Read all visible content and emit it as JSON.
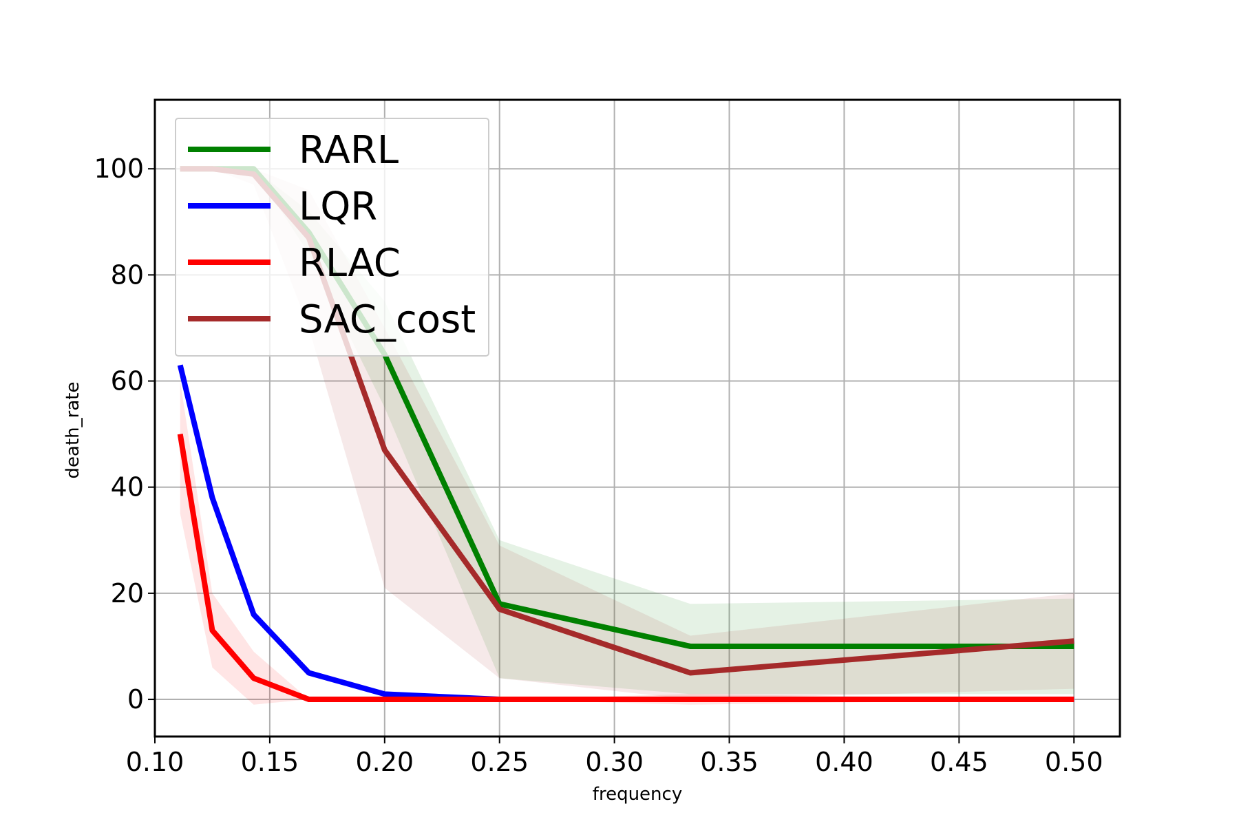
{
  "chart_data": {
    "type": "line",
    "title": "",
    "xlabel": "frequency",
    "ylabel": "death_rate",
    "xlim": [
      0.1,
      0.52
    ],
    "ylim": [
      -7,
      113
    ],
    "grid": true,
    "legend_position": "top-left",
    "xticks": [
      0.1,
      0.15,
      0.2,
      0.25,
      0.3,
      0.35,
      0.4,
      0.45,
      0.5
    ],
    "xtick_labels": [
      "0.10",
      "0.15",
      "0.20",
      "0.25",
      "0.30",
      "0.35",
      "0.40",
      "0.45",
      "0.50"
    ],
    "yticks": [
      0,
      20,
      40,
      60,
      80,
      100
    ],
    "ytick_labels": [
      "0",
      "20",
      "40",
      "60",
      "80",
      "100"
    ],
    "x": [
      0.111,
      0.125,
      0.143,
      0.167,
      0.2,
      0.25,
      0.333,
      0.5
    ],
    "series": [
      {
        "name": "RARL",
        "color": "#008000",
        "values": [
          100,
          100,
          100,
          88,
          65,
          18,
          10,
          10
        ],
        "band_lower": [
          100,
          100,
          100,
          84,
          55,
          4,
          1,
          1
        ],
        "band_upper": [
          100,
          100,
          100,
          92,
          75,
          30,
          18,
          19
        ]
      },
      {
        "name": "LQR",
        "color": "#0000ff",
        "values": [
          63,
          38,
          16,
          5,
          1,
          0,
          0,
          0
        ]
      },
      {
        "name": "RLAC",
        "color": "#ff0000",
        "values": [
          50,
          13,
          4,
          0,
          0,
          0,
          0,
          0
        ],
        "band_lower": [
          35,
          6,
          -1,
          0,
          0,
          0,
          -1,
          0
        ],
        "band_upper": [
          60,
          20,
          9,
          0,
          0,
          0,
          1,
          0
        ]
      },
      {
        "name": "SAC_cost",
        "color": "#a52a2a",
        "values": [
          100,
          100,
          99,
          87,
          47,
          17,
          5,
          11
        ],
        "band_lower": [
          100,
          100,
          97,
          70,
          21,
          4,
          0,
          2
        ],
        "band_upper": [
          100,
          100,
          100,
          96,
          70,
          29,
          12,
          20
        ]
      }
    ]
  }
}
